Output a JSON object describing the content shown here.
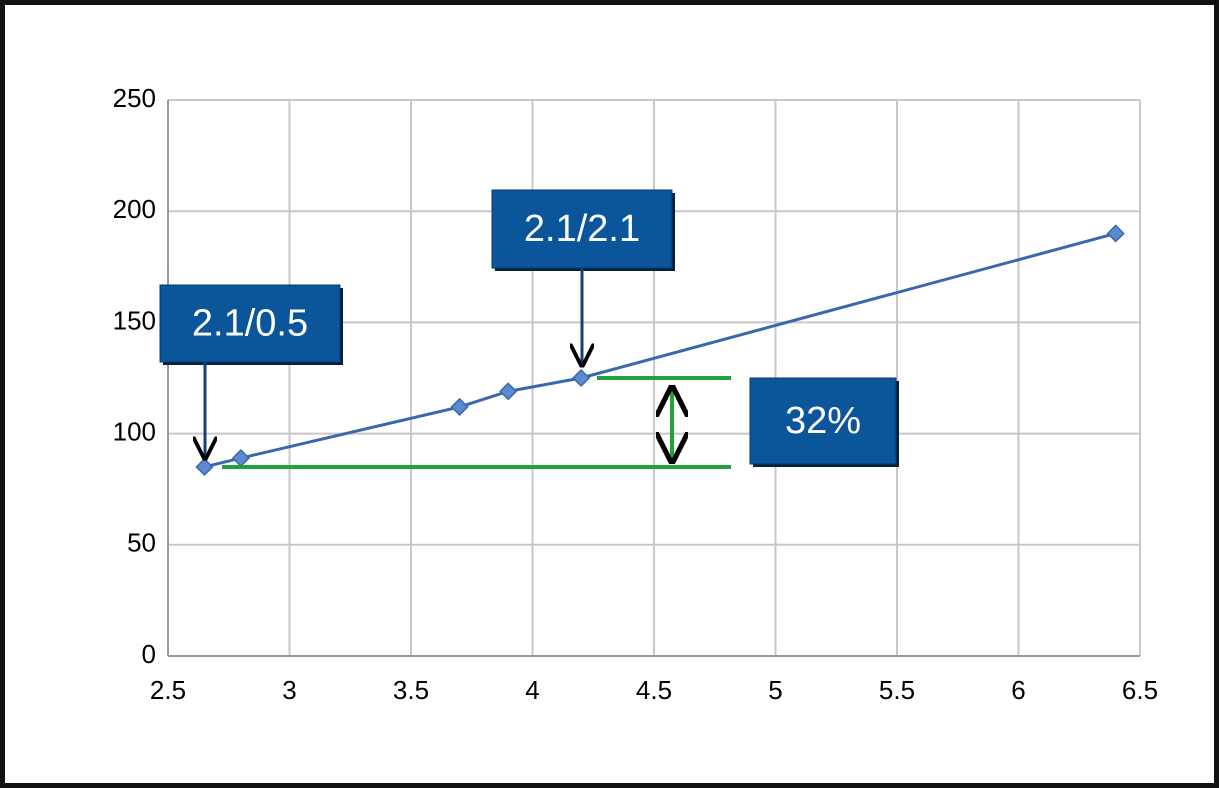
{
  "chart_data": {
    "type": "line",
    "x": [
      2.65,
      2.8,
      3.7,
      3.9,
      4.2,
      6.4
    ],
    "series": [
      {
        "color": "#3a68ad",
        "values": [
          85,
          89,
          112,
          119,
          125,
          190
        ]
      }
    ],
    "xlim": [
      2.5,
      6.5
    ],
    "xticks": [
      2.5,
      3,
      3.5,
      4,
      4.5,
      5,
      5.5,
      6,
      6.5
    ],
    "ylim": [
      0,
      250
    ],
    "yticks": [
      0,
      50,
      100,
      150,
      200,
      250
    ],
    "grid": true,
    "annotations": [
      "2.1/0.5",
      "2.1/2.1",
      "32%"
    ]
  }
}
